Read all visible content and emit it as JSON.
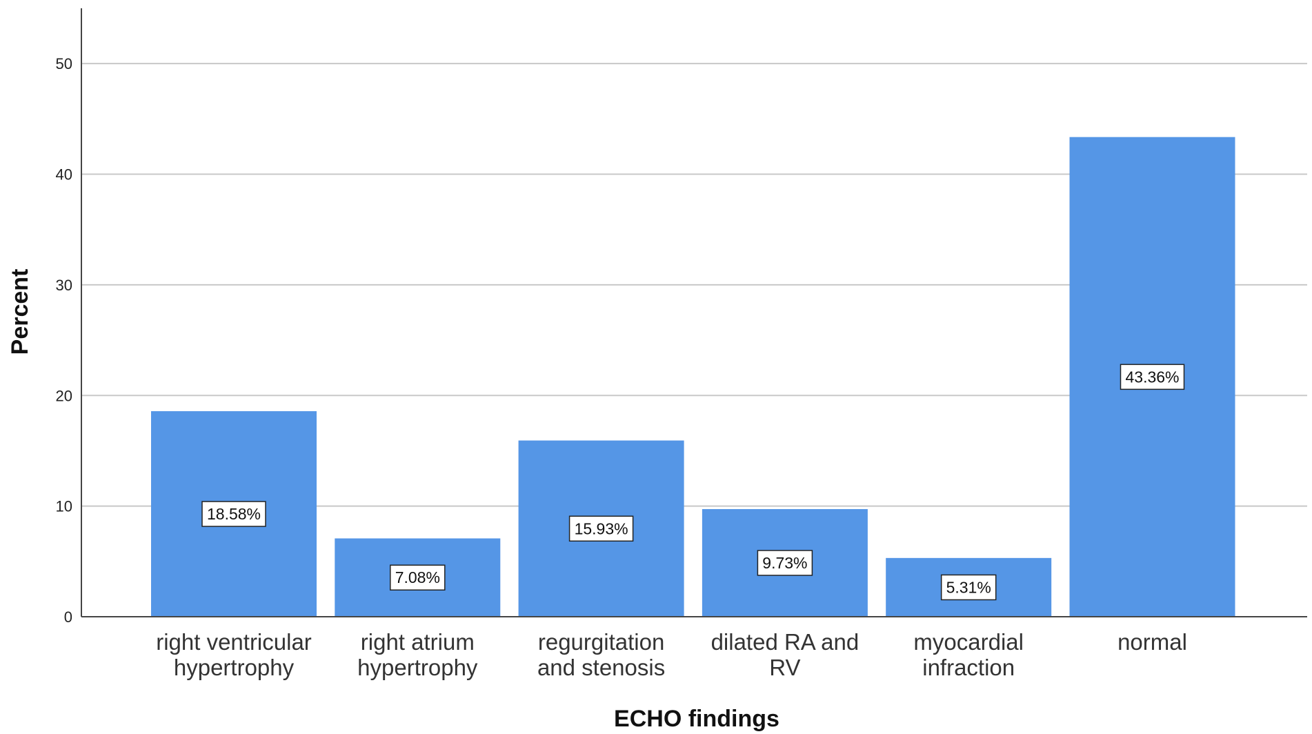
{
  "chart_data": {
    "type": "bar",
    "categories": [
      [
        "right ventricular",
        "hypertrophy"
      ],
      [
        "right atrium",
        "hypertrophy"
      ],
      [
        "regurgitation",
        "and  stenosis"
      ],
      [
        "dilated RA and",
        "RV"
      ],
      [
        "myocardial",
        "infraction"
      ],
      [
        "normal"
      ]
    ],
    "values": [
      18.58,
      7.08,
      15.93,
      9.73,
      5.31,
      43.36
    ],
    "data_labels": [
      "18.58%",
      "7.08%",
      "15.93%",
      "9.73%",
      "5.31%",
      "43.36%"
    ],
    "xlabel": "ECHO findings",
    "ylabel": "Percent",
    "ylim": [
      0,
      55
    ],
    "yticks": [
      0,
      10,
      20,
      30,
      40,
      50
    ],
    "grid": true,
    "bar_color": "#5596e6"
  }
}
